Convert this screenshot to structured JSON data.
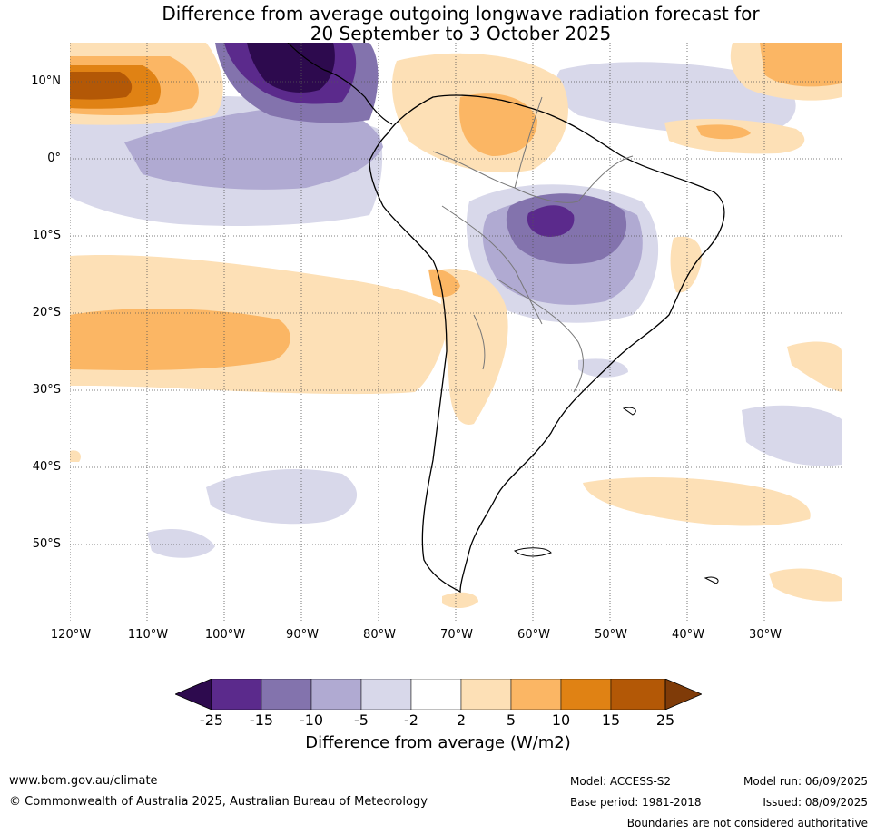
{
  "title": {
    "line1": "Difference from average outgoing longwave radiation forecast for",
    "line2": "20 September to 3 October 2025"
  },
  "map": {
    "lat_labels": [
      "10°N",
      "0°",
      "10°S",
      "20°S",
      "30°S",
      "40°S",
      "50°S"
    ],
    "lon_labels": [
      "120°W",
      "110°W",
      "100°W",
      "90°W",
      "80°W",
      "70°W",
      "60°W",
      "50°W",
      "40°W",
      "30°W"
    ],
    "lat_range": [
      -60,
      15
    ],
    "lon_range": [
      -120,
      -20
    ],
    "gridlines": true
  },
  "colorbar": {
    "ticks": [
      "-25",
      "-15",
      "-10",
      "-5",
      "-2",
      "2",
      "5",
      "10",
      "15",
      "25"
    ],
    "colors": [
      "#2d0a4e",
      "#5b2a8c",
      "#8373ad",
      "#b0aad2",
      "#d8d8ea",
      "#ffffff",
      "#fde0b6",
      "#fbb664",
      "#e08214",
      "#b35806",
      "#7f3b08"
    ],
    "label": "Difference from average (W/m2)",
    "extend": "both"
  },
  "footer": {
    "website": "www.bom.gov.au/climate",
    "copyright": "© Commonwealth of Australia 2025, Australian Bureau of Meteorology",
    "model": "Model: ACCESS-S2",
    "base_period": "Base period: 1981-2018",
    "model_run": "Model run: 06/09/2025",
    "issued": "Issued: 08/09/2025",
    "disclaimer": "Boundaries are not considered authoritative"
  }
}
